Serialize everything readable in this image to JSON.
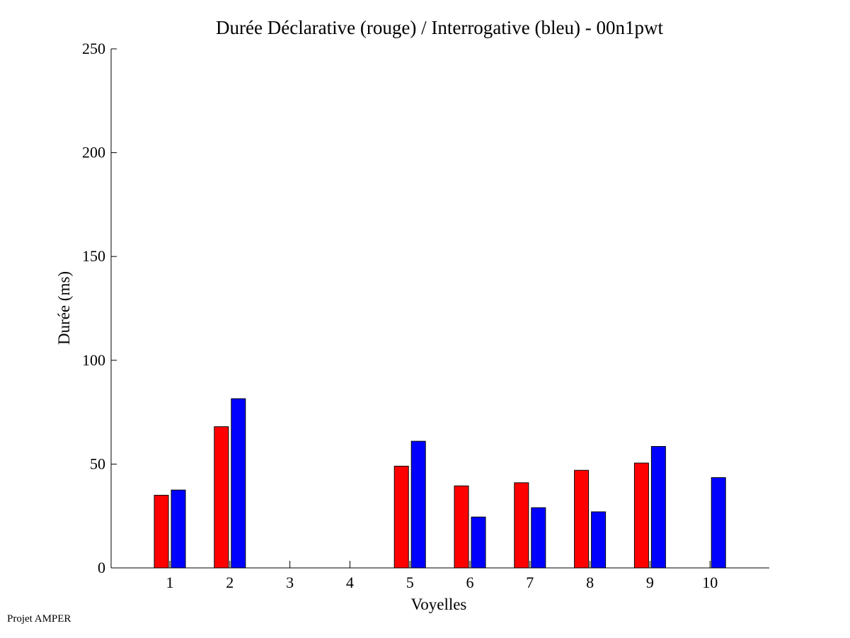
{
  "footer": "Projet AMPER",
  "chart_data": {
    "type": "bar",
    "title": "Durée Déclarative (rouge) / Interrogative (bleu) - 00n1pwt",
    "xlabel": "Voyelles",
    "ylabel": "Durée (ms)",
    "categories": [
      "1",
      "2",
      "3",
      "4",
      "5",
      "6",
      "7",
      "8",
      "9",
      "10"
    ],
    "ylim": [
      0,
      250
    ],
    "yticks": [
      "0",
      "50",
      "100",
      "150",
      "200",
      "250"
    ],
    "grid": false,
    "series": [
      {
        "color": "#ff0000",
        "values": [
          35,
          68,
          null,
          null,
          49,
          39.5,
          41,
          47,
          50.5,
          null
        ]
      },
      {
        "color": "#0000ff",
        "values": [
          37.5,
          81.5,
          null,
          null,
          61,
          24.5,
          29,
          27,
          58.5,
          43.5
        ]
      }
    ]
  }
}
